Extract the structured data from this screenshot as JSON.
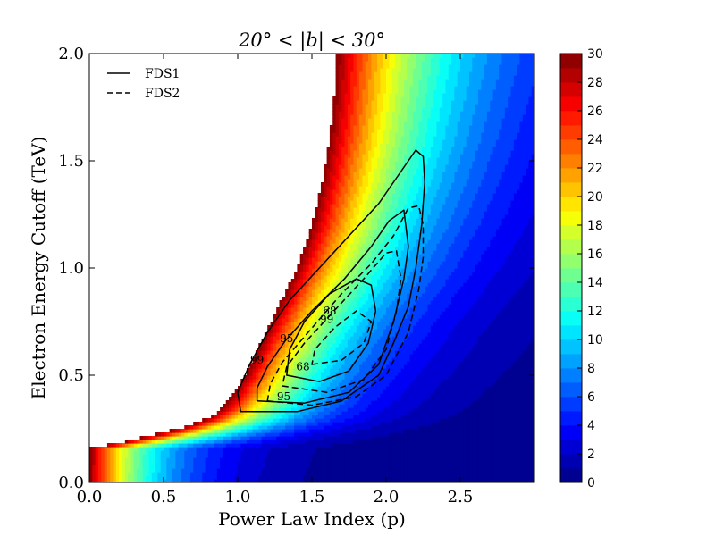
{
  "chart_data": {
    "type": "contourf",
    "title": "20° < |b| < 30°",
    "xlabel": "Power Law Index (p)",
    "ylabel": "Electron Energy Cutoff (TeV)",
    "xlim": [
      0.0,
      3.0
    ],
    "ylim": [
      0.0,
      2.0
    ],
    "xticks": [
      0.0,
      0.5,
      1.0,
      1.5,
      2.0,
      2.5
    ],
    "xtick_labels": [
      "0.0",
      "0.5",
      "1.0",
      "1.5",
      "2.0",
      "2.5"
    ],
    "yticks": [
      0.0,
      0.5,
      1.0,
      1.5,
      2.0
    ],
    "ytick_labels": [
      "0.0",
      "0.5",
      "1.0",
      "1.5",
      "2.0"
    ],
    "colorbar": {
      "min": 0,
      "max": 30,
      "level_step": 1,
      "ticks": [
        0,
        2,
        4,
        6,
        8,
        10,
        12,
        14,
        16,
        18,
        20,
        22,
        24,
        26,
        28,
        30
      ],
      "tick_labels": [
        "0",
        "2",
        "4",
        "6",
        "8",
        "10",
        "12",
        "14",
        "16",
        "18",
        "20",
        "22",
        "24",
        "26",
        "28",
        "30"
      ],
      "colormap": "jet"
    },
    "field_boundary": {
      "description": "approximate p value where the filled field reaches the colorbar maximum, per cutoff value",
      "cutoff": [
        0.0,
        0.16,
        0.2,
        0.25,
        0.3,
        0.35,
        0.4,
        0.5,
        0.6,
        0.8,
        1.0,
        1.2,
        1.4,
        1.6,
        1.8,
        2.0
      ],
      "p": [
        0.0,
        0.0,
        0.3,
        0.6,
        0.8,
        0.9,
        0.96,
        1.05,
        1.12,
        1.26,
        1.4,
        1.5,
        1.57,
        1.62,
        1.65,
        1.67
      ]
    },
    "legend": {
      "location": "upper left",
      "entries": [
        {
          "label": "FDS1",
          "linestyle": "solid"
        },
        {
          "label": "FDS2",
          "linestyle": "dashed"
        }
      ]
    },
    "contours": [
      {
        "series": "FDS1",
        "level": "99",
        "points": [
          [
            1.02,
            0.33
          ],
          [
            1.4,
            0.33
          ],
          [
            1.7,
            0.38
          ],
          [
            1.95,
            0.5
          ],
          [
            2.05,
            0.65
          ],
          [
            2.15,
            0.82
          ],
          [
            2.2,
            1.0
          ],
          [
            2.24,
            1.2
          ],
          [
            2.26,
            1.4
          ],
          [
            2.25,
            1.52
          ],
          [
            2.2,
            1.55
          ],
          [
            2.1,
            1.45
          ],
          [
            1.95,
            1.3
          ],
          [
            1.75,
            1.15
          ],
          [
            1.55,
            1.0
          ],
          [
            1.35,
            0.85
          ],
          [
            1.2,
            0.7
          ],
          [
            1.08,
            0.55
          ],
          [
            1.0,
            0.42
          ]
        ]
      },
      {
        "series": "FDS1",
        "level": "95",
        "points": [
          [
            1.13,
            0.38
          ],
          [
            1.45,
            0.37
          ],
          [
            1.75,
            0.42
          ],
          [
            1.95,
            0.55
          ],
          [
            2.05,
            0.75
          ],
          [
            2.12,
            0.95
          ],
          [
            2.15,
            1.1
          ],
          [
            2.12,
            1.27
          ],
          [
            2.02,
            1.22
          ],
          [
            1.9,
            1.1
          ],
          [
            1.72,
            0.95
          ],
          [
            1.5,
            0.8
          ],
          [
            1.32,
            0.66
          ],
          [
            1.2,
            0.54
          ],
          [
            1.13,
            0.44
          ]
        ]
      },
      {
        "series": "FDS1",
        "level": "68",
        "points": [
          [
            1.33,
            0.5
          ],
          [
            1.55,
            0.47
          ],
          [
            1.75,
            0.52
          ],
          [
            1.88,
            0.65
          ],
          [
            1.93,
            0.8
          ],
          [
            1.9,
            0.92
          ],
          [
            1.8,
            0.95
          ],
          [
            1.62,
            0.88
          ],
          [
            1.45,
            0.75
          ],
          [
            1.35,
            0.62
          ]
        ]
      },
      {
        "series": "FDS2",
        "level": "99",
        "points": [
          [
            1.2,
            0.38
          ],
          [
            1.5,
            0.36
          ],
          [
            1.8,
            0.4
          ],
          [
            2.0,
            0.5
          ],
          [
            2.15,
            0.7
          ],
          [
            2.22,
            0.9
          ],
          [
            2.25,
            1.05
          ],
          [
            2.25,
            1.2
          ],
          [
            2.22,
            1.29
          ],
          [
            2.15,
            1.28
          ],
          [
            2.05,
            1.15
          ],
          [
            1.9,
            1.02
          ],
          [
            1.7,
            0.88
          ],
          [
            1.5,
            0.72
          ],
          [
            1.3,
            0.56
          ],
          [
            1.22,
            0.46
          ]
        ]
      },
      {
        "series": "FDS2",
        "level": "95",
        "points": [
          [
            1.3,
            0.45
          ],
          [
            1.6,
            0.42
          ],
          [
            1.85,
            0.48
          ],
          [
            2.0,
            0.62
          ],
          [
            2.07,
            0.8
          ],
          [
            2.1,
            0.95
          ],
          [
            2.07,
            1.08
          ],
          [
            2.0,
            1.07
          ],
          [
            1.85,
            0.95
          ],
          [
            1.65,
            0.8
          ],
          [
            1.45,
            0.65
          ],
          [
            1.33,
            0.54
          ]
        ]
      },
      {
        "series": "FDS2",
        "level": "68",
        "points": [
          [
            1.5,
            0.55
          ],
          [
            1.7,
            0.57
          ],
          [
            1.85,
            0.65
          ],
          [
            1.9,
            0.75
          ],
          [
            1.8,
            0.8
          ],
          [
            1.65,
            0.72
          ],
          [
            1.52,
            0.62
          ]
        ]
      }
    ],
    "contour_labels": [
      {
        "text": "99",
        "p": 1.13,
        "cutoff": 0.57
      },
      {
        "text": "95",
        "p": 1.33,
        "cutoff": 0.67
      },
      {
        "text": "68",
        "p": 1.62,
        "cutoff": 0.8
      },
      {
        "text": "99",
        "p": 1.6,
        "cutoff": 0.76
      },
      {
        "text": "68",
        "p": 1.44,
        "cutoff": 0.54
      },
      {
        "text": "95",
        "p": 1.31,
        "cutoff": 0.4
      }
    ]
  }
}
